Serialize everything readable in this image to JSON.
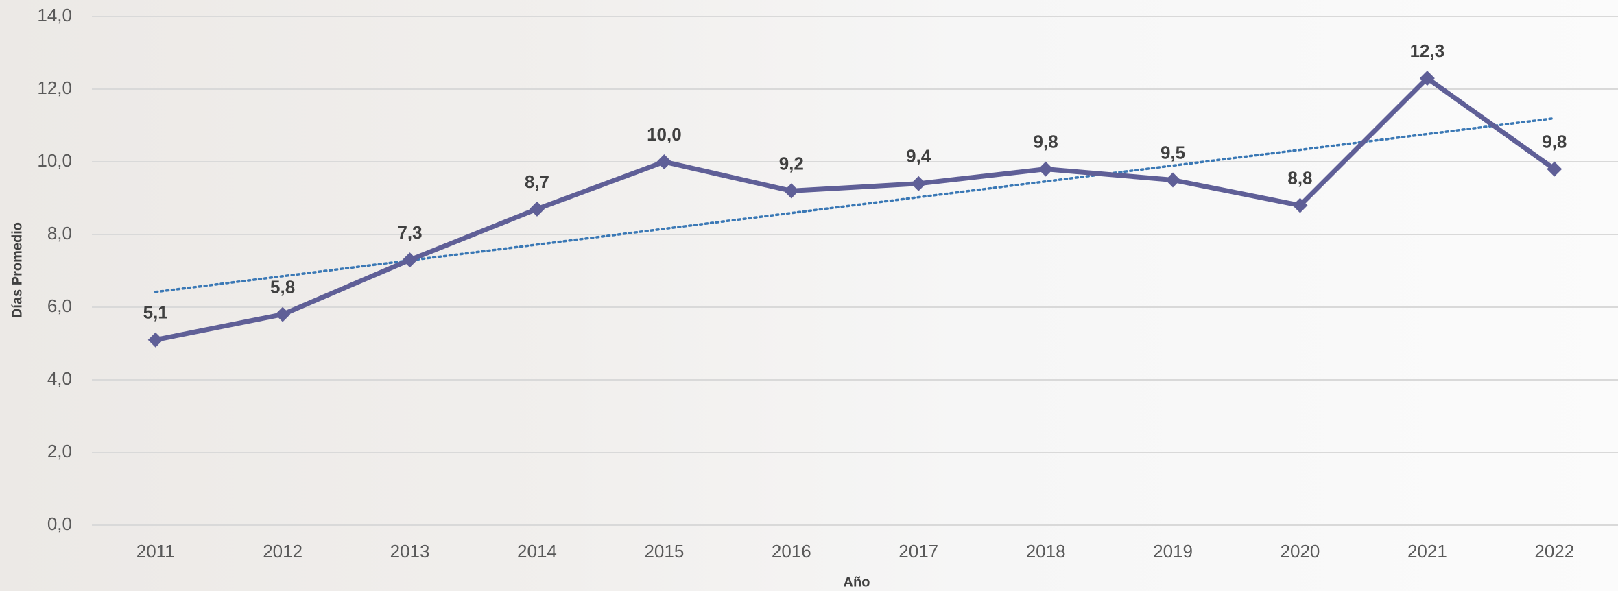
{
  "chart_data": {
    "type": "line",
    "x_label": "Año",
    "y_label": "Días Promedio",
    "categories": [
      "2011",
      "2012",
      "2013",
      "2014",
      "2015",
      "2016",
      "2017",
      "2018",
      "2019",
      "2020",
      "2021",
      "2022"
    ],
    "series": [
      {
        "color": "#5f5f97",
        "values": [
          5.1,
          5.8,
          7.3,
          8.7,
          10.0,
          9.2,
          9.4,
          9.8,
          9.5,
          8.8,
          12.3,
          9.8
        ],
        "value_labels": [
          "5,1",
          "5,8",
          "7,3",
          "8,7",
          "10,0",
          "9,2",
          "9,4",
          "9,8",
          "9,5",
          "8,8",
          "12,3",
          "9,8"
        ]
      }
    ],
    "trendline": {
      "type": "linear",
      "color": "#3a78b5"
    },
    "ylim": [
      0,
      14
    ],
    "yticks": [
      {
        "value": 0,
        "label": "0,0"
      },
      {
        "value": 2,
        "label": "2,0"
      },
      {
        "value": 4,
        "label": "4,0"
      },
      {
        "value": 6,
        "label": "6,0"
      },
      {
        "value": 8,
        "label": "8,0"
      },
      {
        "value": 10,
        "label": "10,0"
      },
      {
        "value": 12,
        "label": "12,0"
      },
      {
        "value": 14,
        "label": "14,0"
      }
    ],
    "grid": true
  }
}
